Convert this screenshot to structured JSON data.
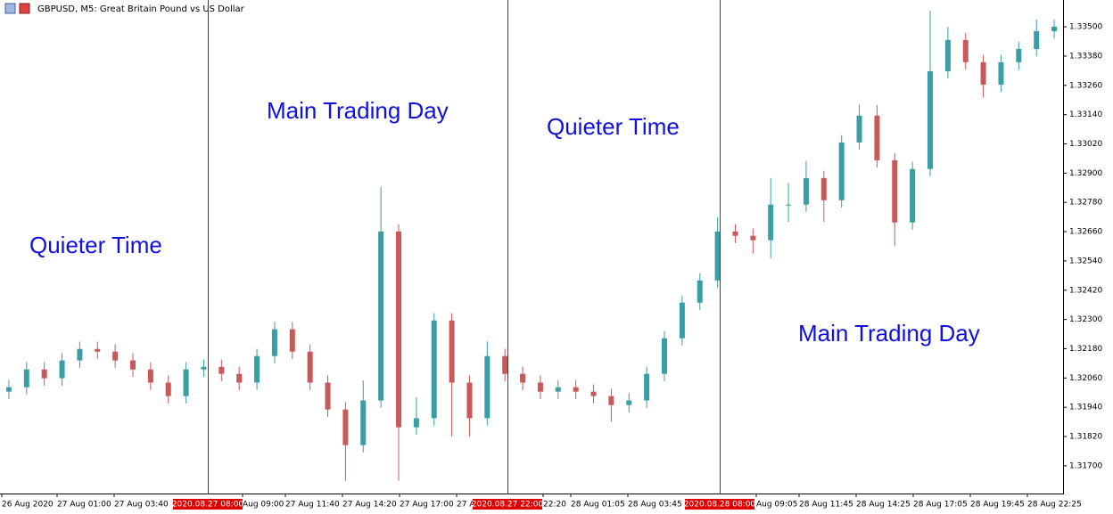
{
  "chart_data": {
    "type": "candlestick",
    "title": "GBPUSD, M5:  Great Britain Pound vs US Dollar",
    "up_color": "#3a9ea5",
    "down_color": "#c8585a",
    "marker_color": "#e00000",
    "annotation_color": "#1010e0",
    "ylim": [
      1.3159,
      1.3361
    ],
    "yticks": [
      {
        "value": 1.317,
        "label": "1.31700"
      },
      {
        "value": 1.3182,
        "label": "1.31820"
      },
      {
        "value": 1.3194,
        "label": "1.31940"
      },
      {
        "value": 1.3206,
        "label": "1.32060"
      },
      {
        "value": 1.3218,
        "label": "1.32180"
      },
      {
        "value": 1.323,
        "label": "1.32300"
      },
      {
        "value": 1.3242,
        "label": "1.32420"
      },
      {
        "value": 1.3254,
        "label": "1.32540"
      },
      {
        "value": 1.3266,
        "label": "1.32660"
      },
      {
        "value": 1.3278,
        "label": "1.32780"
      },
      {
        "value": 1.329,
        "label": "1.32900"
      },
      {
        "value": 1.3302,
        "label": "1.33020"
      },
      {
        "value": 1.3314,
        "label": "1.33140"
      },
      {
        "value": 1.3326,
        "label": "1.33260"
      },
      {
        "value": 1.3338,
        "label": "1.33380"
      },
      {
        "value": 1.335,
        "label": "1.33500"
      }
    ],
    "open": [
      1.32004,
      1.32022,
      1.32095,
      1.32059,
      1.32132,
      1.32179,
      1.32168,
      1.32132,
      1.32095,
      1.32041,
      1.31986,
      1.32095,
      1.32106,
      1.32077,
      1.32041,
      1.3215,
      1.3226,
      1.32168,
      1.32041,
      1.31931,
      1.31785,
      1.31968,
      1.32661,
      1.31858,
      1.31895,
      1.32296,
      1.32041,
      1.31895,
      1.3215,
      1.32077,
      1.32041,
      1.32004,
      1.32022,
      1.32004,
      1.31986,
      1.31949,
      1.31968,
      1.32077,
      1.32223,
      1.32369,
      1.3246,
      1.32661,
      1.32643,
      1.32625,
      1.32771,
      1.32771,
      1.3288,
      1.32789,
      1.33026,
      1.33136,
      1.32953,
      1.32698,
      1.32917,
      1.33318,
      1.33446,
      1.33355,
      1.33263,
      1.33355,
      1.33409,
      1.33482
    ],
    "high": [
      1.32052,
      1.32125,
      1.32125,
      1.32162,
      1.32209,
      1.32209,
      1.32198,
      1.32162,
      1.32125,
      1.32071,
      1.32125,
      1.32136,
      1.32136,
      1.32107,
      1.3218,
      1.3229,
      1.3229,
      1.32198,
      1.32071,
      1.31961,
      1.3205,
      1.32844,
      1.32691,
      1.3198,
      1.32326,
      1.32326,
      1.32071,
      1.3221,
      1.3218,
      1.32107,
      1.32071,
      1.32052,
      1.32052,
      1.32034,
      1.32016,
      1.31998,
      1.32107,
      1.32253,
      1.32399,
      1.3249,
      1.3272,
      1.32691,
      1.32673,
      1.3288,
      1.3286,
      1.3295,
      1.3291,
      1.33056,
      1.3318,
      1.3318,
      1.32983,
      1.32947,
      1.33566,
      1.335,
      1.33476,
      1.33385,
      1.33385,
      1.33439,
      1.3353,
      1.33531
    ],
    "low": [
      1.31974,
      1.31992,
      1.32029,
      1.32029,
      1.32102,
      1.32138,
      1.32102,
      1.32065,
      1.32011,
      1.31956,
      1.31956,
      1.32065,
      1.32047,
      1.32011,
      1.32011,
      1.3212,
      1.32138,
      1.32011,
      1.31901,
      1.31639,
      1.31755,
      1.31938,
      1.31639,
      1.31828,
      1.31865,
      1.3182,
      1.3182,
      1.31865,
      1.32047,
      1.32011,
      1.31974,
      1.31974,
      1.31974,
      1.31956,
      1.3188,
      1.31919,
      1.31938,
      1.32047,
      1.32193,
      1.32339,
      1.3243,
      1.32613,
      1.3257,
      1.3255,
      1.327,
      1.32741,
      1.327,
      1.32759,
      1.32996,
      1.32923,
      1.326,
      1.32668,
      1.32887,
      1.33288,
      1.33325,
      1.3321,
      1.33233,
      1.33325,
      1.33379,
      1.33452
    ],
    "close": [
      1.32022,
      1.32095,
      1.32059,
      1.32132,
      1.32179,
      1.32168,
      1.32132,
      1.32095,
      1.32041,
      1.31986,
      1.32095,
      1.32106,
      1.32077,
      1.32041,
      1.3215,
      1.3226,
      1.32168,
      1.32041,
      1.31931,
      1.31785,
      1.31968,
      1.32661,
      1.31858,
      1.31895,
      1.32296,
      1.32041,
      1.31895,
      1.3215,
      1.32077,
      1.32041,
      1.32004,
      1.32022,
      1.32004,
      1.31986,
      1.31949,
      1.31968,
      1.32077,
      1.32223,
      1.32369,
      1.3246,
      1.32661,
      1.32643,
      1.32625,
      1.32771,
      1.32771,
      1.3288,
      1.32789,
      1.33026,
      1.33136,
      1.32953,
      1.32698,
      1.32917,
      1.33318,
      1.33446,
      1.33355,
      1.33263,
      1.33355,
      1.33409,
      1.33482,
      1.33501
    ],
    "x_labels": [
      "26 Aug 2020",
      "27 Aug 01:00",
      "27 Aug 03:40",
      "Aug 09:00",
      "27 Aug 11:40",
      "27 Aug 14:20",
      "27 Aug 17:00",
      "27 A",
      "22:20",
      "28 Aug 01:05",
      "28 Aug 03:45",
      "Aug 09:05",
      "28 Aug 11:45",
      "28 Aug 14:25",
      "28 Aug 17:05",
      "28 Aug 19:45",
      "28 Aug 22:25"
    ],
    "markers": [
      "2020.08.27 08:00",
      "2020.08.27 22:00",
      "2020.08.28 08:00"
    ],
    "annotations": [
      "Quieter Time",
      "Main Trading Day",
      "Quieter Time",
      "Main Trading Day"
    ]
  }
}
